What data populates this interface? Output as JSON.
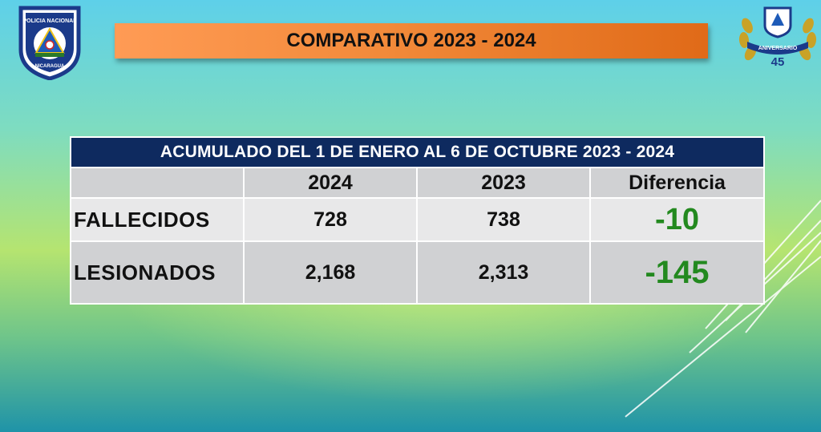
{
  "slide": {
    "title": "COMPARATIVO 2023 - 2024"
  },
  "logos": {
    "left": {
      "name": "policia-nacional-logo",
      "text_top": "POLICIA NACIONAL",
      "text_bottom": "NICARAGUA"
    },
    "right": {
      "name": "anniversary-emblem",
      "text": "ANIVERSARIO",
      "number": "45"
    }
  },
  "table": {
    "header": "ACUMULADO DEL 1 DE ENERO AL 6 DE OCTUBRE  2023 - 2024",
    "columns": [
      "",
      "2024",
      "2023",
      "Diferencia"
    ],
    "rows": [
      {
        "label": "FALLECIDOS",
        "v2024": "728",
        "v2023": "738",
        "diff": "-10"
      },
      {
        "label": "LESIONADOS",
        "v2024": "2,168",
        "v2023": "2,313",
        "diff": "-145"
      }
    ]
  },
  "colors": {
    "title_bar": "#f28a3a",
    "table_header": "#0e2a5f",
    "difference_text": "#23891f"
  }
}
